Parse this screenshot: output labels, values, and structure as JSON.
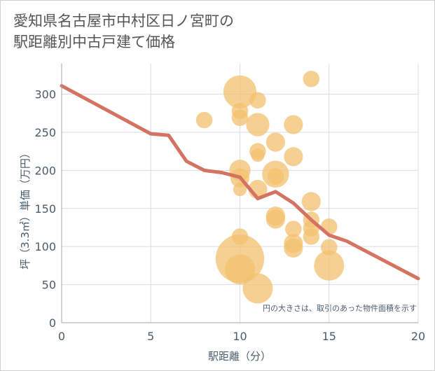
{
  "title": {
    "line1": "愛知県名古屋市中村区日ノ宮町の",
    "line2": "駅距離別中古戸建て価格"
  },
  "chart_data": {
    "type": "scatter",
    "title": "愛知県名古屋市中村区日ノ宮町の 駅距離別中古戸建て価格",
    "xlabel": "駅距離（分）",
    "ylabel": "坪（3.3㎡）単価（万円）",
    "xlim": [
      0,
      20
    ],
    "ylim": [
      0,
      340
    ],
    "xticks": [
      0,
      5,
      10,
      15,
      20
    ],
    "yticks": [
      0,
      50,
      100,
      150,
      200,
      250,
      300
    ],
    "grid": true,
    "note": "円の大きさは、取引のあった物件面積を示す",
    "colors": {
      "bubble": "#f3c06e",
      "line": "#d47361",
      "axis_text": "#4a5c6b",
      "grid": "#d6dee6"
    },
    "bubbles": [
      {
        "x": 8,
        "y": 266,
        "size": 3
      },
      {
        "x": 10,
        "y": 303,
        "size": 12
      },
      {
        "x": 10,
        "y": 278,
        "size": 3
      },
      {
        "x": 10,
        "y": 269,
        "size": 3
      },
      {
        "x": 10,
        "y": 200,
        "size": 5
      },
      {
        "x": 10,
        "y": 190,
        "size": 4
      },
      {
        "x": 10,
        "y": 175,
        "size": 2
      },
      {
        "x": 10,
        "y": 113,
        "size": 3
      },
      {
        "x": 10,
        "y": 84,
        "size": 26
      },
      {
        "x": 10,
        "y": 70,
        "size": 10
      },
      {
        "x": 11,
        "y": 292,
        "size": 3
      },
      {
        "x": 11,
        "y": 260,
        "size": 6
      },
      {
        "x": 11,
        "y": 225,
        "size": 3
      },
      {
        "x": 11,
        "y": 220,
        "size": 2
      },
      {
        "x": 11,
        "y": 175,
        "size": 4
      },
      {
        "x": 11,
        "y": 45,
        "size": 10
      },
      {
        "x": 12,
        "y": 237,
        "size": 4
      },
      {
        "x": 12,
        "y": 195,
        "size": 8
      },
      {
        "x": 12,
        "y": 192,
        "size": 3
      },
      {
        "x": 12,
        "y": 140,
        "size": 4
      },
      {
        "x": 12,
        "y": 136,
        "size": 4
      },
      {
        "x": 13,
        "y": 260,
        "size": 4
      },
      {
        "x": 13,
        "y": 218,
        "size": 4
      },
      {
        "x": 13,
        "y": 123,
        "size": 3
      },
      {
        "x": 13,
        "y": 104,
        "size": 4
      },
      {
        "x": 13,
        "y": 98,
        "size": 4
      },
      {
        "x": 14,
        "y": 320,
        "size": 3
      },
      {
        "x": 14,
        "y": 159,
        "size": 4
      },
      {
        "x": 14,
        "y": 135,
        "size": 3
      },
      {
        "x": 14,
        "y": 124,
        "size": 3
      },
      {
        "x": 14,
        "y": 113,
        "size": 3
      },
      {
        "x": 15,
        "y": 126,
        "size": 3
      },
      {
        "x": 15,
        "y": 99,
        "size": 3
      },
      {
        "x": 15,
        "y": 75,
        "size": 10
      }
    ],
    "trend_line": [
      {
        "x": 0,
        "y": 311
      },
      {
        "x": 5,
        "y": 248
      },
      {
        "x": 6,
        "y": 246
      },
      {
        "x": 7,
        "y": 212
      },
      {
        "x": 8,
        "y": 200
      },
      {
        "x": 9,
        "y": 197
      },
      {
        "x": 10,
        "y": 191
      },
      {
        "x": 11,
        "y": 163
      },
      {
        "x": 12,
        "y": 172
      },
      {
        "x": 13,
        "y": 157
      },
      {
        "x": 14,
        "y": 135
      },
      {
        "x": 15,
        "y": 115
      },
      {
        "x": 16,
        "y": 107
      },
      {
        "x": 20,
        "y": 58
      }
    ]
  }
}
